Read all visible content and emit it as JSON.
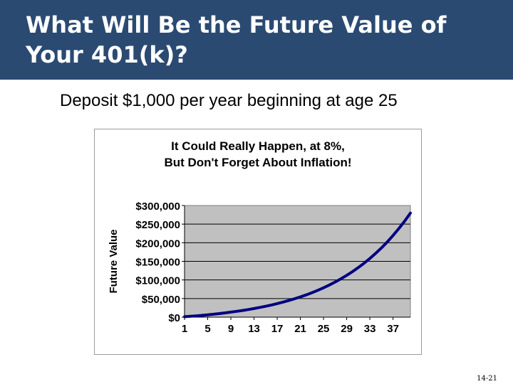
{
  "slide": {
    "title": "What Will Be the Future Value of Your 401(k)?",
    "subtitle": "Deposit $1,000 per year beginning at age 25",
    "page_number": "14-21"
  },
  "colors": {
    "title_bar": "#2a4a72",
    "plot_area": "#c0c0c0",
    "series_line": "#000080"
  },
  "chart_data": {
    "type": "line",
    "title_lines": [
      "It Could Really  Happen, at 8%,",
      "But Don't Forget About  Inflation!"
    ],
    "xlabel": "",
    "ylabel": "Future Value",
    "x_tick_labels": [
      "1",
      "5",
      "9",
      "13",
      "17",
      "21",
      "25",
      "29",
      "33",
      "37"
    ],
    "y_tick_labels": [
      "$300,000",
      "$250,000",
      "$200,000",
      "$150,000",
      "$100,000",
      "$50,000",
      "$0"
    ],
    "xlim": [
      1,
      40
    ],
    "ylim": [
      0,
      300000
    ],
    "grid": true,
    "legend": "none",
    "series": [
      {
        "x": [
          1,
          2,
          3,
          4,
          5,
          6,
          7,
          8,
          9,
          10,
          11,
          12,
          13,
          14,
          15,
          16,
          17,
          18,
          19,
          20,
          21,
          22,
          23,
          24,
          25,
          26,
          27,
          28,
          29,
          30,
          31,
          32,
          33,
          34,
          35,
          36,
          37,
          38,
          39,
          40
        ],
        "values": [
          1080,
          2246,
          3506,
          4867,
          6336,
          7923,
          9637,
          11488,
          13487,
          15645,
          17977,
          20495,
          23215,
          26152,
          29324,
          32750,
          36450,
          40446,
          44762,
          49423,
          54457,
          59893,
          65765,
          72106,
          78954,
          86351,
          94339,
          102966,
          112283,
          122346,
          133214,
          144951,
          157627,
          171317,
          186102,
          202070,
          219316,
          237941,
          258057,
          279781
        ]
      }
    ]
  }
}
